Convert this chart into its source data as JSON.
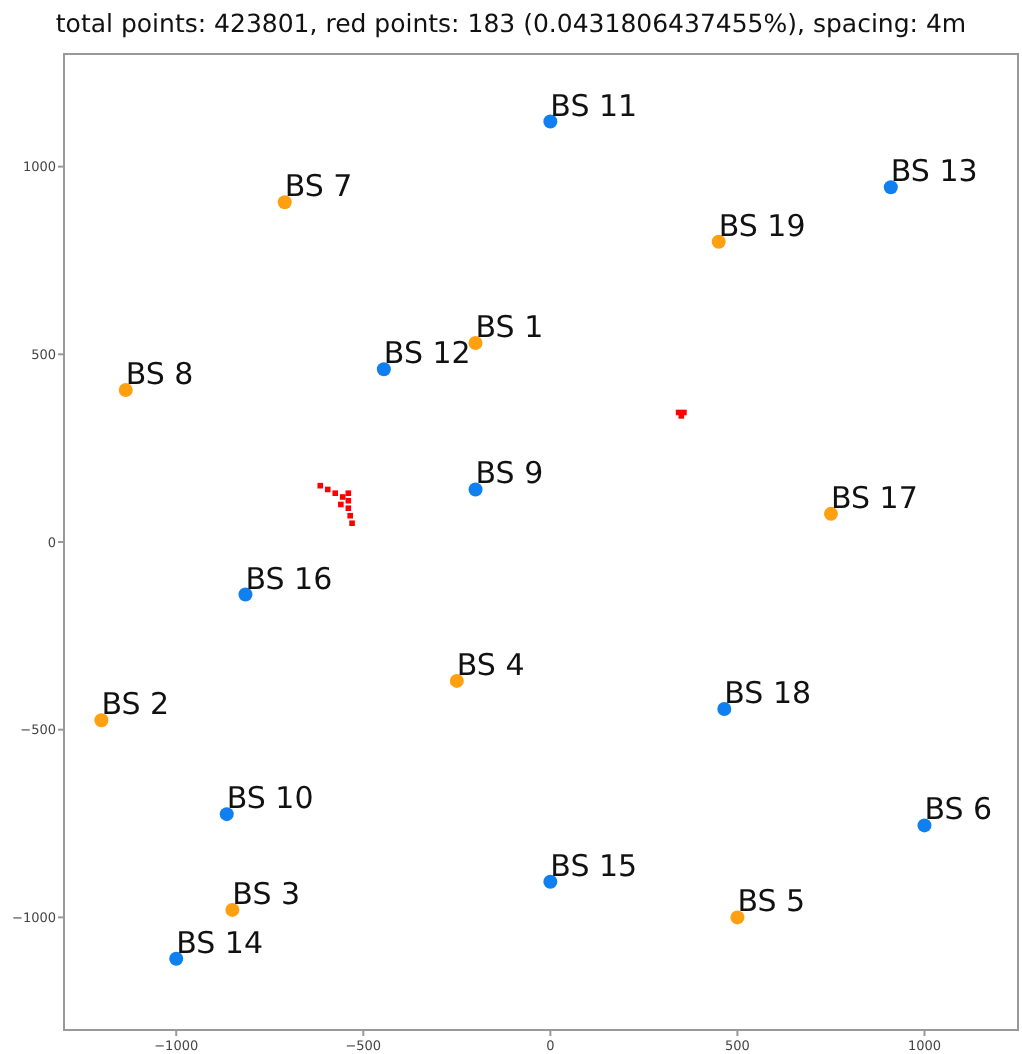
{
  "chart_data": {
    "type": "scatter",
    "title": "total points: 423801, red points: 183 (0.0431806437455%), spacing: 4m",
    "xlim": [
      -1300,
      1250
    ],
    "ylim": [
      -1300,
      1300
    ],
    "xticks": [
      {
        "value": -1000,
        "label": "−1000"
      },
      {
        "value": -500,
        "label": "−500"
      },
      0,
      500,
      1000
    ],
    "yticks": [
      {
        "value": -1000,
        "label": "−1000"
      },
      {
        "value": -500,
        "label": "−500"
      },
      0,
      500,
      1000
    ],
    "grid": false,
    "marker": "circle",
    "series": [
      {
        "name": "BS 1",
        "color": "#ffa010",
        "x": [
          -200
        ],
        "values": [
          530
        ]
      },
      {
        "name": "BS 2",
        "color": "#ffa010",
        "x": [
          -1200
        ],
        "values": [
          -475
        ]
      },
      {
        "name": "BS 3",
        "color": "#ffa010",
        "x": [
          -850
        ],
        "values": [
          -980
        ]
      },
      {
        "name": "BS 4",
        "color": "#ffa010",
        "x": [
          -250
        ],
        "values": [
          -370
        ]
      },
      {
        "name": "BS 5",
        "color": "#ffa010",
        "x": [
          500
        ],
        "values": [
          -1000
        ]
      },
      {
        "name": "BS 6",
        "color": "#1080f0",
        "x": [
          1000
        ],
        "values": [
          -755
        ]
      },
      {
        "name": "BS 7",
        "color": "#ffa010",
        "x": [
          -710
        ],
        "values": [
          905
        ]
      },
      {
        "name": "BS 8",
        "color": "#ffa010",
        "x": [
          -1135
        ],
        "values": [
          405
        ]
      },
      {
        "name": "BS 9",
        "color": "#1080f0",
        "x": [
          -200
        ],
        "values": [
          140
        ]
      },
      {
        "name": "BS 10",
        "color": "#1080f0",
        "x": [
          -865
        ],
        "values": [
          -725
        ]
      },
      {
        "name": "BS 11",
        "color": "#1080f0",
        "x": [
          0
        ],
        "values": [
          1120
        ]
      },
      {
        "name": "BS 12",
        "color": "#1080f0",
        "x": [
          -445
        ],
        "values": [
          460
        ]
      },
      {
        "name": "BS 13",
        "color": "#1080f0",
        "x": [
          910
        ],
        "values": [
          945
        ]
      },
      {
        "name": "BS 14",
        "color": "#1080f0",
        "x": [
          -1000
        ],
        "values": [
          -1110
        ]
      },
      {
        "name": "BS 15",
        "color": "#1080f0",
        "x": [
          0
        ],
        "values": [
          -905
        ]
      },
      {
        "name": "BS 16",
        "color": "#1080f0",
        "x": [
          -815
        ],
        "values": [
          -140
        ]
      },
      {
        "name": "BS 17",
        "color": "#ffa010",
        "x": [
          750
        ],
        "values": [
          75
        ]
      },
      {
        "name": "BS 18",
        "color": "#1080f0",
        "x": [
          465
        ],
        "values": [
          -445
        ]
      },
      {
        "name": "BS 19",
        "color": "#ffa010",
        "x": [
          450
        ],
        "values": [
          800
        ]
      },
      {
        "color": "#ff0000",
        "marker": "square",
        "x": [
          -615,
          -595,
          -575,
          -555,
          -540,
          -540,
          -535,
          -530,
          -560,
          -540
        ],
        "values": [
          150,
          140,
          130,
          120,
          110,
          90,
          70,
          50,
          100,
          130
        ]
      },
      {
        "color": "#ff0000",
        "marker": "square",
        "x": [
          343,
          357,
          350
        ],
        "values": [
          345,
          345,
          336
        ]
      }
    ]
  }
}
